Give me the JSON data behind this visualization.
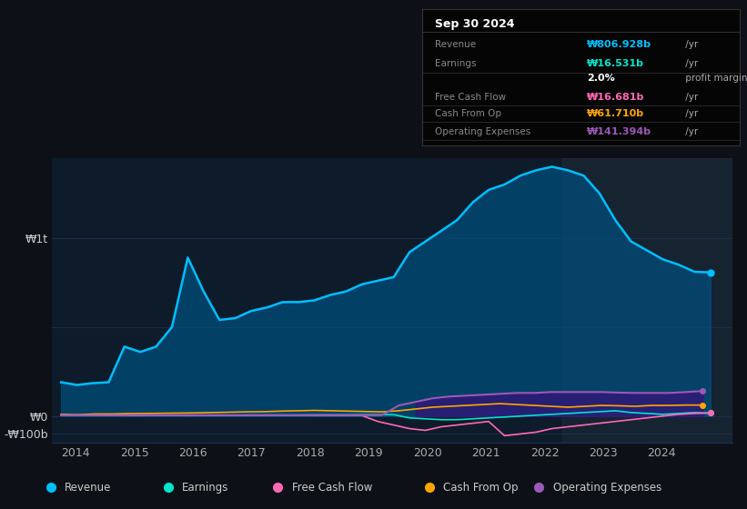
{
  "bg_color": "#0d1117",
  "plot_bg_color": "#0d1b2a",
  "grid_color": "#1e3050",
  "ylabel_1t": "₩1t",
  "ylabel_0": "₩0",
  "ylabel_neg100b": "-₩100b",
  "xlabel_years": [
    "2014",
    "2015",
    "2016",
    "2017",
    "2018",
    "2019",
    "2020",
    "2021",
    "2022",
    "2023",
    "2024"
  ],
  "info_title": "Sep 30 2024",
  "legend": [
    {
      "label": "Revenue",
      "color": "#00bfff"
    },
    {
      "label": "Earnings",
      "color": "#00e5cc"
    },
    {
      "label": "Free Cash Flow",
      "color": "#ff69b4"
    },
    {
      "label": "Cash From Op",
      "color": "#ffa500"
    },
    {
      "label": "Operating Expenses",
      "color": "#9b59b6"
    }
  ],
  "revenue": [
    190,
    175,
    185,
    190,
    390,
    360,
    390,
    500,
    890,
    700,
    540,
    550,
    590,
    610,
    640,
    640,
    650,
    680,
    700,
    740,
    760,
    780,
    920,
    980,
    1040,
    1100,
    1200,
    1270,
    1300,
    1350,
    1380,
    1400,
    1380,
    1350,
    1250,
    1100,
    980,
    930,
    880,
    850,
    810,
    807
  ],
  "earnings": [
    5,
    4,
    5,
    5,
    5,
    4,
    5,
    5,
    5,
    5,
    5,
    5,
    6,
    6,
    6,
    6,
    7,
    7,
    7,
    8,
    8,
    8,
    -10,
    -15,
    -20,
    -20,
    -15,
    -10,
    -5,
    0,
    5,
    10,
    15,
    20,
    25,
    30,
    20,
    15,
    10,
    15,
    20,
    17
  ],
  "free_cash_flow": [
    5,
    5,
    5,
    4,
    3,
    3,
    4,
    4,
    3,
    4,
    4,
    4,
    4,
    4,
    4,
    4,
    3,
    3,
    3,
    3,
    -30,
    -50,
    -70,
    -80,
    -60,
    -50,
    -40,
    -30,
    -110,
    -100,
    -90,
    -70,
    -60,
    -50,
    -40,
    -30,
    -20,
    -10,
    0,
    10,
    15,
    17
  ],
  "cash_from_op": [
    10,
    8,
    12,
    12,
    14,
    15,
    16,
    17,
    18,
    20,
    22,
    24,
    25,
    28,
    30,
    32,
    30,
    28,
    26,
    24,
    30,
    40,
    50,
    55,
    60,
    65,
    70,
    65,
    60,
    55,
    50,
    55,
    60,
    58,
    55,
    60,
    60,
    62,
    62
  ],
  "operating_expenses": [
    5,
    5,
    5,
    5,
    5,
    5,
    5,
    5,
    5,
    5,
    5,
    5,
    5,
    5,
    5,
    5,
    5,
    5,
    5,
    5,
    60,
    80,
    100,
    110,
    115,
    120,
    125,
    130,
    130,
    135,
    135,
    135,
    135,
    132,
    130,
    130,
    130,
    135,
    141
  ]
}
